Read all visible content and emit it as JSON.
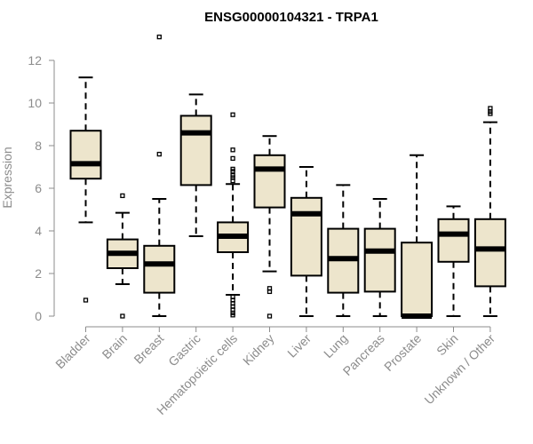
{
  "chart_data": {
    "type": "boxplot",
    "title": "ENSG00000104321 - TRPA1",
    "xlabel": "",
    "ylabel": "Expression",
    "ylim": [
      0,
      13.3
    ],
    "yticks": [
      0,
      2,
      4,
      6,
      8,
      10,
      12
    ],
    "categories": [
      "Bladder",
      "Brain",
      "Breast",
      "Gastric",
      "Hematopoietic cells",
      "Kidney",
      "Liver",
      "Lung",
      "Pancreas",
      "Prostate",
      "Skin",
      "Unknown / Other"
    ],
    "boxes": [
      {
        "category": "Bladder",
        "whisker_low": 4.4,
        "q1": 6.45,
        "median": 7.15,
        "q3": 8.7,
        "whisker_high": 11.2,
        "outliers": [
          0.75
        ]
      },
      {
        "category": "Brain",
        "whisker_low": 1.5,
        "q1": 2.25,
        "median": 2.95,
        "q3": 3.6,
        "whisker_high": 4.85,
        "outliers": [
          5.65,
          0.0
        ]
      },
      {
        "category": "Breast",
        "whisker_low": 0.0,
        "q1": 1.1,
        "median": 2.45,
        "q3": 3.3,
        "whisker_high": 5.5,
        "outliers": [
          7.6,
          13.1
        ]
      },
      {
        "category": "Gastric",
        "whisker_low": 3.75,
        "q1": 6.15,
        "median": 8.6,
        "q3": 9.4,
        "whisker_high": 10.4,
        "outliers": []
      },
      {
        "category": "Hematopoietic cells",
        "whisker_low": 1.0,
        "q1": 3.0,
        "median": 3.75,
        "q3": 4.4,
        "whisker_high": 6.2,
        "outliers": [
          9.45,
          7.8,
          7.4,
          6.9,
          6.8,
          6.6,
          6.5,
          6.35,
          0.9,
          0.75,
          0.6,
          0.45,
          0.3,
          0.15,
          0.05
        ]
      },
      {
        "category": "Kidney",
        "whisker_low": 2.1,
        "q1": 5.1,
        "median": 6.9,
        "q3": 7.55,
        "whisker_high": 8.45,
        "outliers": [
          1.3,
          1.15,
          0.0
        ]
      },
      {
        "category": "Liver",
        "whisker_low": 0.0,
        "q1": 1.9,
        "median": 4.8,
        "q3": 5.55,
        "whisker_high": 7.0,
        "outliers": []
      },
      {
        "category": "Lung",
        "whisker_low": 0.0,
        "q1": 1.1,
        "median": 2.7,
        "q3": 4.1,
        "whisker_high": 6.15,
        "outliers": []
      },
      {
        "category": "Pancreas",
        "whisker_low": 0.0,
        "q1": 1.15,
        "median": 3.05,
        "q3": 4.1,
        "whisker_high": 5.5,
        "outliers": []
      },
      {
        "category": "Prostate",
        "whisker_low": 0.0,
        "q1": 0.0,
        "median": 0.0,
        "q3": 3.45,
        "whisker_high": 7.55,
        "outliers": []
      },
      {
        "category": "Skin",
        "whisker_low": 0.0,
        "q1": 2.55,
        "median": 3.85,
        "q3": 4.55,
        "whisker_high": 5.15,
        "outliers": []
      },
      {
        "category": "Unknown / Other",
        "whisker_low": 0.0,
        "q1": 1.4,
        "median": 3.15,
        "q3": 4.55,
        "whisker_high": 9.1,
        "outliers": [
          9.75,
          9.6,
          9.5
        ]
      }
    ]
  },
  "colors": {
    "box_fill": "#ede5cc",
    "axis": "#8c8c8c",
    "ink": "#000000"
  }
}
